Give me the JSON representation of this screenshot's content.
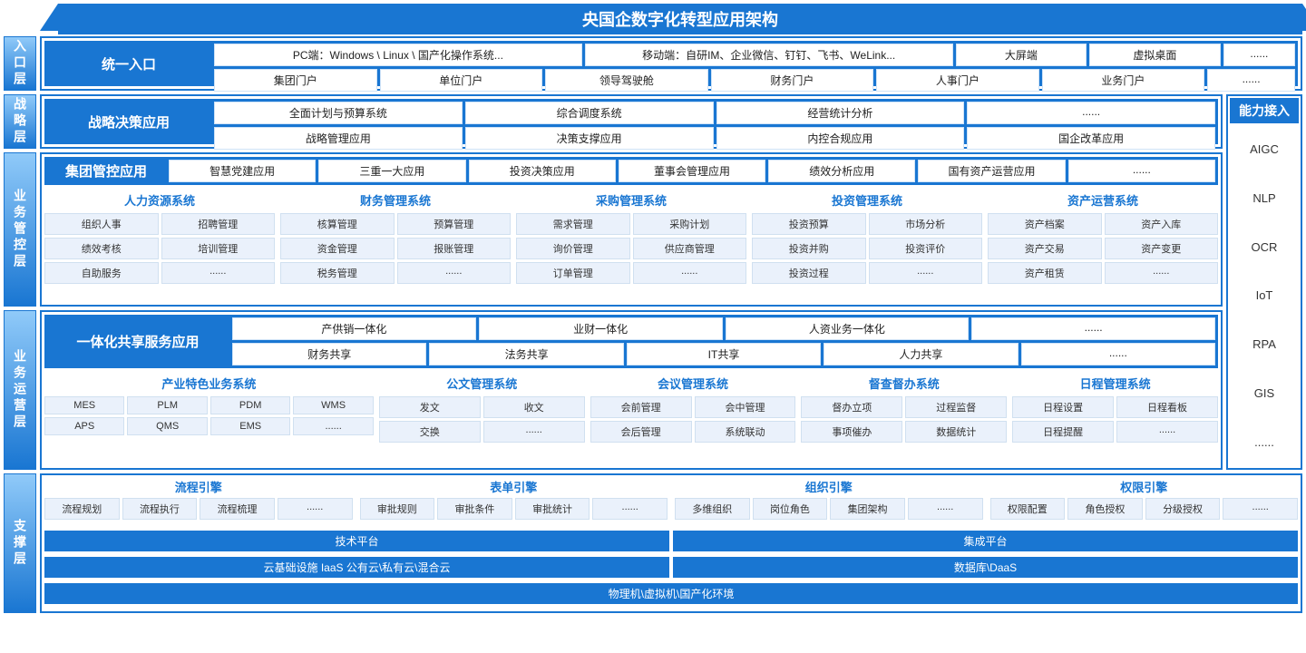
{
  "colors": {
    "primary": "#1976d2",
    "light": "#eaf1fb",
    "grad_top": "#90caf9",
    "text": "#333",
    "border": "#cfe3f7"
  },
  "title": "央国企数字化转型应用架构",
  "layers": {
    "entry": "入口层",
    "strategy": "战略层",
    "control": "业务管控层",
    "ops": "业务运营层",
    "support": "支撑层"
  },
  "entry": {
    "hdr": "统一入口",
    "r1": [
      "PC端：Windows \\ Linux \\ 国产化操作系统...",
      "移动端：自研IM、企业微信、钉钉、飞书、WeLink...",
      "大屏端",
      "虚拟桌面",
      "......"
    ],
    "r2": [
      "集团门户",
      "单位门户",
      "领导驾驶舱",
      "财务门户",
      "人事门户",
      "业务门户",
      "......"
    ]
  },
  "strategy": {
    "hdr": "战略决策应用",
    "r1": [
      "全面计划与预算系统",
      "综合调度系统",
      "经营统计分析",
      "......"
    ],
    "r2": [
      "战略管理应用",
      "决策支撑应用",
      "内控合规应用",
      "国企改革应用"
    ]
  },
  "group": {
    "hdr": "集团管控应用",
    "items": [
      "智慧党建应用",
      "三重一大应用",
      "投资决策应用",
      "董事会管理应用",
      "绩效分析应用",
      "国有资产运营应用",
      "......"
    ]
  },
  "systems": [
    {
      "title": "人力资源系统",
      "items": [
        "组织人事",
        "招聘管理",
        "绩效考核",
        "培训管理",
        "自助服务",
        "......"
      ]
    },
    {
      "title": "财务管理系统",
      "items": [
        "核算管理",
        "预算管理",
        "资金管理",
        "报账管理",
        "税务管理",
        "......"
      ]
    },
    {
      "title": "采购管理系统",
      "items": [
        "需求管理",
        "采购计划",
        "询价管理",
        "供应商管理",
        "订单管理",
        "......"
      ]
    },
    {
      "title": "投资管理系统",
      "items": [
        "投资预算",
        "市场分析",
        "投资并购",
        "投资评价",
        "投资过程",
        "......"
      ]
    },
    {
      "title": "资产运营系统",
      "items": [
        "资产档案",
        "资产入库",
        "资产交易",
        "资产变更",
        "资产租赁",
        "......"
      ]
    }
  ],
  "integrated": {
    "hdr": "一体化共享服务应用",
    "r1": [
      "产供销一体化",
      "业财一体化",
      "人资业务一体化",
      "......"
    ],
    "r2": [
      "财务共享",
      "法务共享",
      "IT共享",
      "人力共享",
      "......"
    ]
  },
  "bizsys": [
    {
      "title": "产业特色业务系统",
      "cols": 4,
      "items": [
        "MES",
        "PLM",
        "PDM",
        "WMS",
        "APS",
        "QMS",
        "EMS",
        "......"
      ]
    },
    {
      "title": "公文管理系统",
      "cols": 2,
      "items": [
        "发文",
        "收文",
        "交换",
        "......"
      ]
    },
    {
      "title": "会议管理系统",
      "cols": 2,
      "items": [
        "会前管理",
        "会中管理",
        "会后管理",
        "系统联动"
      ]
    },
    {
      "title": "督查督办系统",
      "cols": 2,
      "items": [
        "督办立项",
        "过程监督",
        "事项催办",
        "数据统计"
      ]
    },
    {
      "title": "日程管理系统",
      "cols": 2,
      "items": [
        "日程设置",
        "日程看板",
        "日程提醒",
        "......"
      ]
    }
  ],
  "engines": [
    {
      "title": "流程引擎",
      "items": [
        "流程规划",
        "流程执行",
        "流程梳理",
        "......"
      ]
    },
    {
      "title": "表单引擎",
      "items": [
        "审批规则",
        "审批条件",
        "审批统计",
        "......"
      ]
    },
    {
      "title": "组织引擎",
      "items": [
        "多维组织",
        "岗位角色",
        "集团架构",
        "......"
      ]
    },
    {
      "title": "权限引擎",
      "items": [
        "权限配置",
        "角色授权",
        "分级授权",
        "......"
      ]
    }
  ],
  "platforms": {
    "r1": [
      "技术平台",
      "集成平台"
    ],
    "r2": [
      "云基础设施 IaaS 公有云\\私有云\\混合云",
      "数据库\\DaaS"
    ],
    "r3": [
      "物理机\\虚拟机\\国产化环境"
    ]
  },
  "capability": {
    "hdr": "能力接入",
    "items": [
      "AIGC",
      "NLP",
      "OCR",
      "IoT",
      "RPA",
      "GIS",
      "......"
    ]
  },
  "heights": {
    "entry": 60,
    "strategy": 60,
    "control": 170,
    "ops": 176,
    "support": 150
  }
}
